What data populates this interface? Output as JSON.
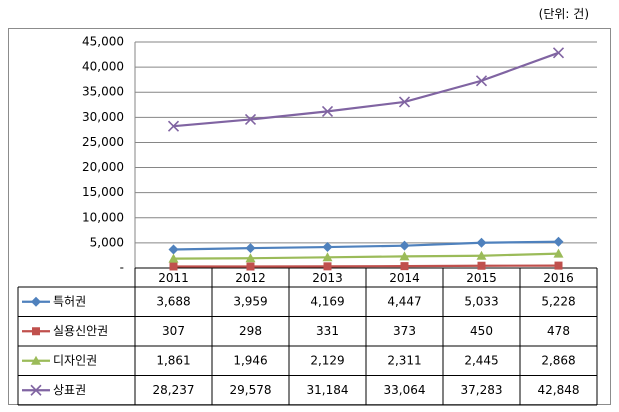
{
  "unit_note": "(단위: 건)",
  "chart_data": {
    "type": "line",
    "categories": [
      "2011",
      "2012",
      "2013",
      "2014",
      "2015",
      "2016"
    ],
    "ylim": [
      0,
      45000
    ],
    "yticks": [
      "-",
      "5,000",
      "10,000",
      "15,000",
      "20,000",
      "25,000",
      "30,000",
      "35,000",
      "40,000",
      "45,000"
    ],
    "grid": true,
    "legend": "table-left",
    "series": [
      {
        "name": "특허권",
        "color": "#4f81bd",
        "marker": "diamond",
        "values": [
          3688,
          3959,
          4169,
          4447,
          5033,
          5228
        ],
        "labels": [
          "3,688",
          "3,959",
          "4,169",
          "4,447",
          "5,033",
          "5,228"
        ]
      },
      {
        "name": "실용신안권",
        "color": "#c0504d",
        "marker": "square",
        "values": [
          307,
          298,
          331,
          373,
          450,
          478
        ],
        "labels": [
          "307",
          "298",
          "331",
          "373",
          "450",
          "478"
        ]
      },
      {
        "name": "디자인권",
        "color": "#9bbb59",
        "marker": "triangle",
        "values": [
          1861,
          1946,
          2129,
          2311,
          2445,
          2868
        ],
        "labels": [
          "1,861",
          "1,946",
          "2,129",
          "2,311",
          "2,445",
          "2,868"
        ]
      },
      {
        "name": "상표권",
        "color": "#8064a2",
        "marker": "x",
        "values": [
          28237,
          29578,
          31184,
          33064,
          37283,
          42848
        ],
        "labels": [
          "28,237",
          "29,578",
          "31,184",
          "33,064",
          "37,283",
          "42,848"
        ]
      }
    ]
  }
}
